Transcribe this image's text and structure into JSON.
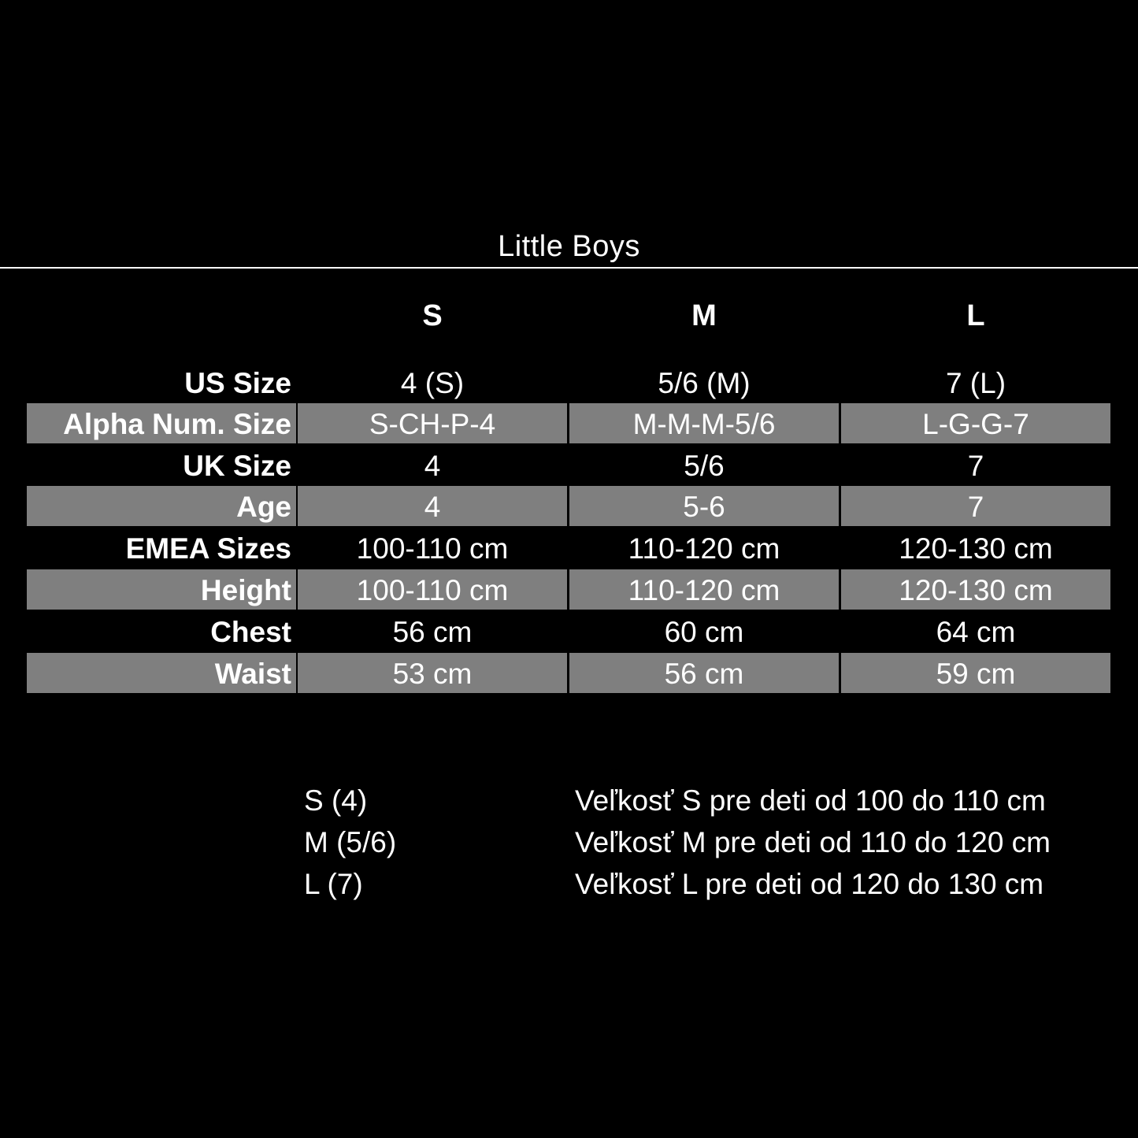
{
  "title": "Little Boys",
  "columns": [
    "S",
    "M",
    "L"
  ],
  "rows": [
    {
      "label": "US Size",
      "values": [
        "4 (S)",
        "5/6 (M)",
        "7 (L)"
      ],
      "shaded": false
    },
    {
      "label": "Alpha Num. Size",
      "values": [
        "S-CH-P-4",
        "M-M-M-5/6",
        "L-G-G-7"
      ],
      "shaded": true
    },
    {
      "label": "UK Size",
      "values": [
        "4",
        "5/6",
        "7"
      ],
      "shaded": false
    },
    {
      "label": "Age",
      "values": [
        "4",
        "5-6",
        "7"
      ],
      "shaded": true
    },
    {
      "label": "EMEA Sizes",
      "values": [
        "100-110 cm",
        "110-120 cm",
        "120-130 cm"
      ],
      "shaded": false
    },
    {
      "label": "Height",
      "values": [
        "100-110 cm",
        "110-120 cm",
        "120-130 cm"
      ],
      "shaded": true
    },
    {
      "label": "Chest",
      "values": [
        "56 cm",
        "60 cm",
        "64 cm"
      ],
      "shaded": false
    },
    {
      "label": "Waist",
      "values": [
        "53 cm",
        "56 cm",
        "59 cm"
      ],
      "shaded": true
    }
  ],
  "notes": [
    {
      "size": "S (4)",
      "text": "Veľkosť S pre deti od 100 do 110 cm"
    },
    {
      "size": "M (5/6)",
      "text": "Veľkosť M pre deti od 110 do 120 cm"
    },
    {
      "size": "L (7)",
      "text": "Veľkosť L pre deti od 120 do 130 cm"
    }
  ],
  "colors": {
    "background": "#000000",
    "shaded_row": "#7f7f7f",
    "text": "#ffffff"
  }
}
